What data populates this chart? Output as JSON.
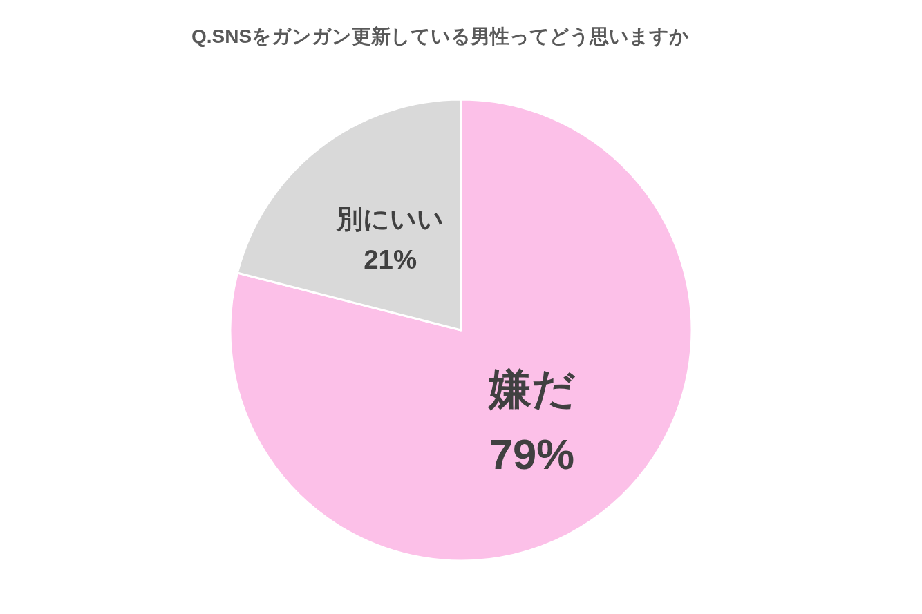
{
  "chart_data": {
    "type": "pie",
    "title": "Q.SNSをガンガン更新している男性ってどう思いますか",
    "categories": [
      "嫌だ",
      "別にいい"
    ],
    "values": [
      79,
      21
    ],
    "colors": [
      "#fcc0e8",
      "#d9d9d9"
    ],
    "value_labels": [
      "79%",
      "21%"
    ],
    "legend": false
  }
}
